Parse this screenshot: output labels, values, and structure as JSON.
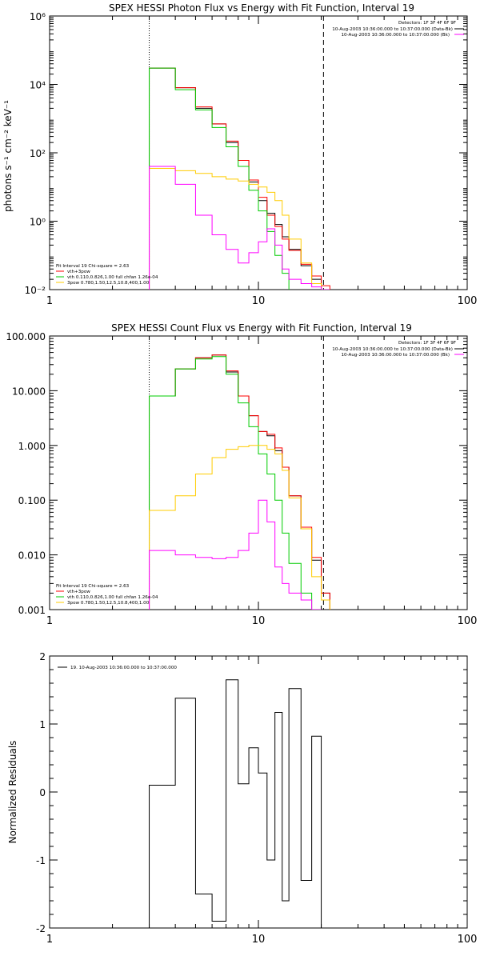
{
  "chart_data": [
    {
      "type": "line",
      "title": "SPEX HESSI Photon Flux vs Energy with Fit Function, Interval 19",
      "ylabel": "photons s⁻¹ cm⁻² keV⁻¹",
      "xlabel": "",
      "x_scale": "log",
      "y_scale": "log",
      "xlim": [
        1,
        100
      ],
      "ylim": [
        0.01,
        1000000
      ],
      "x_ticks": [
        1,
        10,
        100
      ],
      "x_tick_labels": [
        "1",
        "10",
        "100"
      ],
      "y_ticks": [
        0.01,
        1,
        100,
        10000,
        1000000
      ],
      "y_tick_labels": [
        "10⁻²",
        "10⁰",
        "10²",
        "10⁴",
        "10⁶"
      ],
      "grid": false,
      "vlines": [
        {
          "x": 3.0,
          "style": "dotted"
        },
        {
          "x": 20.5,
          "style": "dashed"
        }
      ],
      "legend_topright": {
        "detectors": "Detectors: 1F 3F 4F 6F 9F",
        "entries": [
          {
            "label": "10-Aug-2003 10:36:00.000 to 10:37:00.000 (Data-Bk)",
            "color": "#000000"
          },
          {
            "label": "10-Aug-2003 10:36:00.000 to 10:37:00.000 (Bk)",
            "color": "#ff00ff"
          }
        ]
      },
      "legend_bottomleft": {
        "header": "Fit Interval 19    Chi-square = 2.63",
        "entries": [
          {
            "label": "vth+3pow",
            "color": "#ff0000"
          },
          {
            "label": "vth 0.110,0.826,1.00  full chfan 1.26e-04",
            "color": "#00cc00"
          },
          {
            "label": "3pow 0.780,1.50,12.5,10.8,400,1.00",
            "color": "#ffcc00"
          }
        ]
      },
      "bin_edges": [
        3.0,
        4.0,
        5.0,
        6.0,
        7.0,
        8.0,
        9.0,
        10.0,
        11.0,
        12.0,
        13.0,
        14.0,
        16.0,
        18.0,
        20.0,
        22.0
      ],
      "series": [
        {
          "name": "Data-Bk",
          "color": "#000000",
          "values": [
            30000,
            8000,
            2000,
            700,
            200,
            60,
            14,
            4,
            1.7,
            0.8,
            0.35,
            0.15,
            0.05,
            0.02,
            0.01
          ]
        },
        {
          "name": "vth+3pow",
          "color": "#ff0000",
          "values": [
            30000,
            8000,
            2200,
            700,
            220,
            60,
            16,
            5,
            1.5,
            0.7,
            0.3,
            0.14,
            0.055,
            0.025,
            0.013
          ]
        },
        {
          "name": "vth",
          "color": "#00cc00",
          "values": [
            30000,
            7000,
            1800,
            550,
            150,
            40,
            8,
            2,
            0.5,
            0.1,
            0.03,
            0.008
          ]
        },
        {
          "name": "3pow",
          "color": "#ffcc00",
          "values": [
            35,
            30,
            25,
            20,
            17,
            15,
            12,
            10,
            7,
            4,
            1.5,
            0.3,
            0.06,
            0.015,
            0.005
          ]
        },
        {
          "name": "Bk",
          "color": "#ff00ff",
          "values": [
            40,
            12,
            1.5,
            0.4,
            0.15,
            0.06,
            0.12,
            0.25,
            0.6,
            0.2,
            0.04,
            0.02,
            0.015,
            0.012,
            0.01
          ]
        }
      ]
    },
    {
      "type": "line",
      "title": "SPEX HESSI Count Flux vs Energy with Fit Function, Interval 19",
      "xlabel": "",
      "ylabel": "",
      "x_scale": "log",
      "y_scale": "log",
      "xlim": [
        1,
        100
      ],
      "ylim": [
        0.001,
        100
      ],
      "x_ticks": [
        1,
        10,
        100
      ],
      "x_tick_labels": [
        "1",
        "10",
        "100"
      ],
      "y_ticks": [
        0.001,
        0.01,
        0.1,
        1,
        10,
        100
      ],
      "y_tick_labels": [
        "0.001",
        "0.010",
        "0.100",
        "1.000",
        "10.000",
        "100.000"
      ],
      "grid": false,
      "vlines": [
        {
          "x": 3.0,
          "style": "dotted"
        },
        {
          "x": 20.5,
          "style": "dashed"
        }
      ],
      "legend_topright": {
        "detectors": "Detectors: 1F 3F 4F 6F 9F",
        "entries": [
          {
            "label": "10-Aug-2003 10:36:00.000 to 10:37:00.000 (Data-Bk)",
            "color": "#000000"
          },
          {
            "label": "10-Aug-2003 10:36:00.000 to 10:37:00.000 (Bk)",
            "color": "#ff00ff"
          }
        ]
      },
      "legend_bottomleft": {
        "header": "Fit Interval 19    Chi-square = 2.63",
        "entries": [
          {
            "label": "vth+3pow",
            "color": "#ff0000"
          },
          {
            "label": "vth 0.110,0.826,1.00  full chfan 1.26e-04",
            "color": "#00cc00"
          },
          {
            "label": "3pow 0.780,1.50,12.5,10.8,400,1.00",
            "color": "#ffcc00"
          }
        ]
      },
      "bin_edges": [
        3.0,
        4.0,
        5.0,
        6.0,
        7.0,
        8.0,
        9.0,
        10.0,
        11.0,
        12.0,
        13.0,
        14.0,
        16.0,
        18.0,
        20.0,
        22.0
      ],
      "series": [
        {
          "name": "Data-Bk",
          "color": "#000000",
          "values": [
            8,
            25,
            40,
            45,
            22,
            8,
            3.5,
            1.8,
            1.5,
            0.8,
            0.4,
            0.12,
            0.03,
            0.008,
            0.002
          ]
        },
        {
          "name": "vth+3pow",
          "color": "#ff0000",
          "values": [
            8,
            25,
            40,
            45,
            23,
            8,
            3.5,
            1.8,
            1.6,
            0.9,
            0.4,
            0.12,
            0.032,
            0.009,
            0.002
          ]
        },
        {
          "name": "vth",
          "color": "#00cc00",
          "values": [
            8,
            25,
            38,
            42,
            20,
            6,
            2.2,
            0.7,
            0.3,
            0.1,
            0.025,
            0.007,
            0.002
          ]
        },
        {
          "name": "3pow",
          "color": "#ffcc00",
          "values": [
            0.065,
            0.12,
            0.3,
            0.6,
            0.85,
            0.95,
            1.0,
            1.0,
            0.85,
            0.7,
            0.35,
            0.11,
            0.03,
            0.004,
            0.0015
          ]
        },
        {
          "name": "Bk",
          "color": "#ff00ff",
          "values": [
            0.012,
            0.01,
            0.009,
            0.0085,
            0.009,
            0.012,
            0.025,
            0.1,
            0.04,
            0.006,
            0.003,
            0.002,
            0.0015,
            0.001
          ]
        }
      ]
    },
    {
      "type": "line",
      "title": "",
      "ylabel": "Normalized Residuals",
      "xlabel": "",
      "x_scale": "log",
      "y_scale": "linear",
      "xlim": [
        1,
        100
      ],
      "ylim": [
        -2,
        2
      ],
      "x_ticks": [
        1,
        10,
        100
      ],
      "x_tick_labels": [
        "1",
        "10",
        "100"
      ],
      "y_ticks": [
        -2,
        -1,
        0,
        1,
        2
      ],
      "y_tick_labels": [
        "-2",
        "-1",
        "0",
        "1",
        "2"
      ],
      "grid": false,
      "legend_topleft": {
        "entries": [
          {
            "label": "19. 10-Aug-2003 10:36:00.000 to 10:37:00.000",
            "color": "#000000"
          }
        ]
      },
      "bin_edges": [
        3.0,
        4.0,
        5.0,
        6.0,
        7.0,
        8.0,
        9.0,
        10.0,
        11.0,
        12.0,
        13.0,
        14.0,
        16.0,
        18.0,
        20.0
      ],
      "series": [
        {
          "name": "19. 10-Aug-2003 10:36:00.000 to 10:37:00.000",
          "color": "#000000",
          "values": [
            0.1,
            1.38,
            -1.5,
            -1.9,
            1.65,
            0.12,
            0.65,
            0.28,
            -1.0,
            1.17,
            -1.6,
            1.52,
            -1.3,
            0.82
          ]
        }
      ]
    }
  ]
}
